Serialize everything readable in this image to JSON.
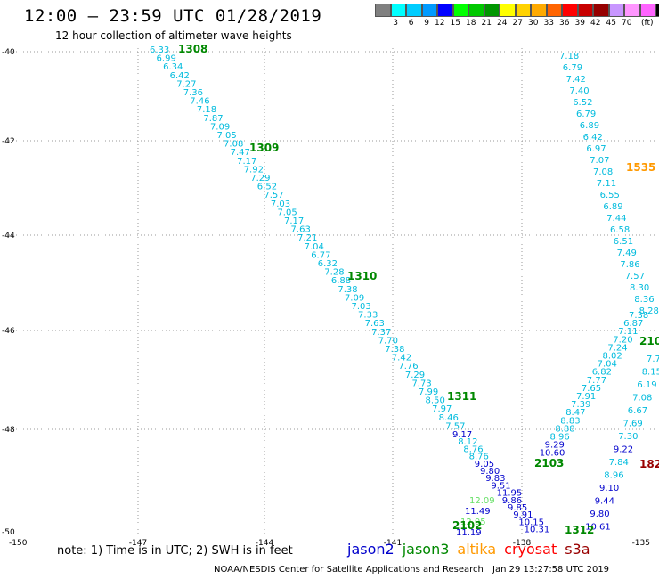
{
  "header": {
    "title": "12:00 – 23:59 UTC 01/28/2019",
    "subtitle": "12 hour collection of altimeter wave heights"
  },
  "color_scale": {
    "colors": [
      "#808080",
      "#00ffff",
      "#00cdff",
      "#009bff",
      "#0000ff",
      "#00ff00",
      "#00c800",
      "#009600",
      "#ffff00",
      "#ffd200",
      "#ffaa00",
      "#ff6400",
      "#ff0000",
      "#c80000",
      "#960000",
      "#c896ff",
      "#ff96ff",
      "#ff64ff",
      "#000000"
    ],
    "labels": [
      "3",
      "6",
      "9",
      "12",
      "15",
      "18",
      "21",
      "24",
      "27",
      "30",
      "33",
      "36",
      "39",
      "42",
      "45",
      "70",
      "(ft)"
    ]
  },
  "axes": {
    "lat_ticks": [
      "-40",
      "-42",
      "-44",
      "-46",
      "-48",
      "-50"
    ],
    "lon_ticks": [
      "-150",
      "-147",
      "-144",
      "-141",
      "-138",
      "-135"
    ]
  },
  "colors": {
    "cyan": "#00bbdd",
    "blue": "#0000cc",
    "green": "#008800",
    "lightgreen": "#66e066",
    "orange": "#ff9900",
    "darkred": "#990000"
  },
  "tracks": {
    "left": [
      "6.33",
      "6.99",
      "6.34",
      "6.42",
      "7.27",
      "7.36",
      "7.46",
      "7.18",
      "7.87",
      "7.09",
      "7.05",
      "7.08",
      "7.47",
      "7.17",
      "7.92",
      "7.29",
      "6.52",
      "7.57",
      "7.03",
      "7.05",
      "7.17",
      "7.63",
      "7.21",
      "7.04",
      "6.77",
      "6.32",
      "7.28",
      "6.88",
      "7.38",
      "7.09",
      "7.03",
      "7.33",
      "7.63",
      "7.37",
      "7.70",
      "7.38",
      "7.42",
      "7.76",
      "7.29",
      "7.73",
      "7.99",
      "8.50",
      "7.97",
      "8.46",
      "7.57",
      "9.17",
      "8.12",
      "8.76",
      "8.76",
      "9.05",
      "9.80",
      "9.83",
      "9.51",
      "11.95",
      "9.86",
      "9.85",
      "9.91",
      "10.15",
      "10.31"
    ],
    "left_green": [
      "12.09",
      "11.49",
      "12.05",
      "11.19"
    ],
    "right": [
      "7.18",
      "6.79",
      "7.42",
      "7.40",
      "6.52",
      "6.79",
      "6.89",
      "6.42",
      "6.97",
      "7.07",
      "7.08",
      "7.11",
      "6.55",
      "6.89",
      "7.44",
      "6.58",
      "6.51",
      "7.49",
      "7.86",
      "7.57",
      "8.30",
      "8.36",
      "8.28",
      "7.38",
      "6.87",
      "7.11",
      "7.20",
      "7.24",
      "8.02",
      "7.04",
      "6.82",
      "7.77",
      "7.65",
      "7.91",
      "7.39",
      "8.47",
      "8.83",
      "8.88",
      "8.96",
      "9.29",
      "10.60"
    ],
    "right_lower": [
      "7.7",
      "8.15",
      "6.19",
      "7.08",
      "6.67",
      "7.69",
      "7.30",
      "9.22",
      "7.84",
      "8.96",
      "9.10",
      "9.44",
      "9.80",
      "10.61"
    ],
    "passes": [
      {
        "label": "1308",
        "color": "#008800"
      },
      {
        "label": "1309",
        "color": "#008800"
      },
      {
        "label": "1310",
        "color": "#008800"
      },
      {
        "label": "1311",
        "color": "#008800"
      },
      {
        "label": "2103",
        "color": "#008800"
      },
      {
        "label": "2102",
        "color": "#008800"
      },
      {
        "label": "1312",
        "color": "#008800"
      },
      {
        "label": "1535",
        "color": "#ff9900"
      },
      {
        "label": "210",
        "color": "#008800"
      },
      {
        "label": "182",
        "color": "#990000"
      }
    ]
  },
  "footer": {
    "note": "note: 1) Time is in UTC; 2) SWH is in feet",
    "legend": [
      {
        "name": "jason2",
        "color": "#0000cc"
      },
      {
        "name": "jason3",
        "color": "#008800"
      },
      {
        "name": "altika",
        "color": "#ff9900"
      },
      {
        "name": "cryosat",
        "color": "#ff0000"
      },
      {
        "name": "s3a",
        "color": "#990000"
      }
    ],
    "credit": "NOAA/NESDIS Center for Satellite Applications and Research",
    "timestamp": "Jan 29 13:27:58 UTC 2019"
  }
}
